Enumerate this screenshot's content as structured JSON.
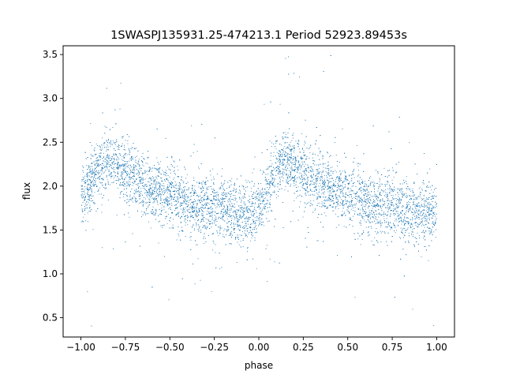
{
  "chart_data": {
    "type": "scatter",
    "title": "1SWASPJ135931.25-474213.1 Period 52923.89453s",
    "xlabel": "phase",
    "ylabel": "flux",
    "xlim": [
      -1.1,
      1.1
    ],
    "ylim": [
      0.28,
      3.6
    ],
    "xticks": [
      -1.0,
      -0.75,
      -0.5,
      -0.25,
      0.0,
      0.25,
      0.5,
      0.75,
      1.0
    ],
    "xtick_labels": [
      "−1.00",
      "−0.75",
      "−0.50",
      "−0.25",
      "0.00",
      "0.25",
      "0.50",
      "0.75",
      "1.00"
    ],
    "yticks": [
      0.5,
      1.0,
      1.5,
      2.0,
      2.5,
      3.0,
      3.5
    ],
    "ytick_labels": [
      "0.5",
      "1.0",
      "1.5",
      "2.0",
      "2.5",
      "3.0",
      "3.5"
    ],
    "grid": false,
    "marker_color": "#1f77b4",
    "series": [
      {
        "phase": [
          -1.0,
          -0.95,
          -0.9,
          -0.85,
          -0.8,
          -0.75,
          -0.7,
          -0.65,
          -0.6,
          -0.55,
          -0.5,
          -0.45,
          -0.4,
          -0.35,
          -0.3,
          -0.25,
          -0.2,
          -0.15,
          -0.1,
          -0.05,
          0.0,
          0.05,
          0.1,
          0.15,
          0.2,
          0.25,
          0.3,
          0.35,
          0.4,
          0.45,
          0.5,
          0.55,
          0.6,
          0.65,
          0.7,
          0.75,
          0.8,
          0.85,
          0.9,
          0.95,
          1.0
        ],
        "flux_median": [
          1.85,
          2.05,
          2.2,
          2.28,
          2.25,
          2.18,
          2.1,
          2.02,
          1.97,
          1.92,
          1.88,
          1.84,
          1.8,
          1.78,
          1.77,
          1.75,
          1.74,
          1.72,
          1.7,
          1.68,
          1.75,
          1.98,
          2.2,
          2.28,
          2.25,
          2.18,
          2.1,
          2.02,
          1.97,
          1.92,
          1.88,
          1.84,
          1.8,
          1.78,
          1.77,
          1.75,
          1.74,
          1.72,
          1.7,
          1.68,
          1.7
        ]
      }
    ]
  }
}
